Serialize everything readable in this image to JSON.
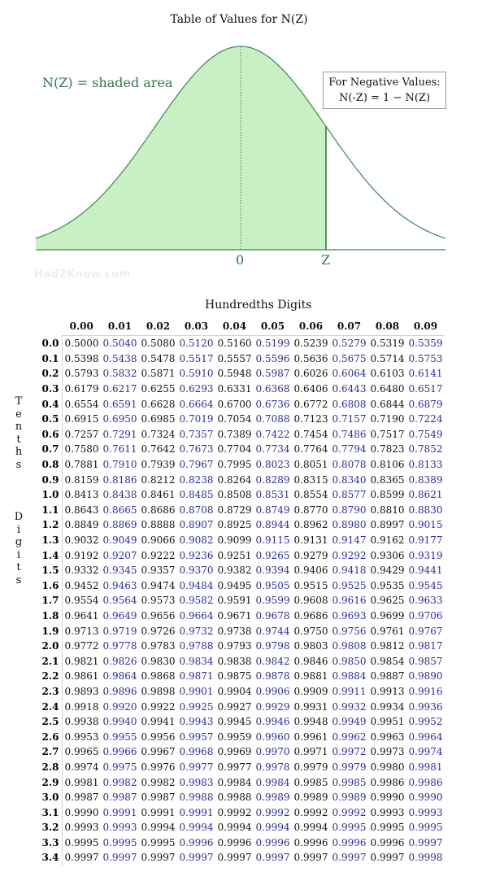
{
  "title": "Table of Values for N(Z)",
  "shaded_label": "N(Z) = shaded area",
  "negative_box": {
    "line1": "For Negative Values:",
    "line2": "N(-Z) = 1 − N(Z)"
  },
  "axis": {
    "zero": "0",
    "z": "Z"
  },
  "watermark": "Had2Know.com",
  "hundredths_label": "Hundredths Digits",
  "tenths_label": "Tenths",
  "digits_label": "Digits",
  "column_headers": [
    "0.00",
    "0.01",
    "0.02",
    "0.03",
    "0.04",
    "0.05",
    "0.06",
    "0.07",
    "0.08",
    "0.09"
  ],
  "rows": [
    {
      "z": "0.0",
      "v": [
        "0.5000",
        "0.5040",
        "0.5080",
        "0.5120",
        "0.5160",
        "0.5199",
        "0.5239",
        "0.5279",
        "0.5319",
        "0.5359"
      ]
    },
    {
      "z": "0.1",
      "v": [
        "0.5398",
        "0.5438",
        "0.5478",
        "0.5517",
        "0.5557",
        "0.5596",
        "0.5636",
        "0.5675",
        "0.5714",
        "0.5753"
      ]
    },
    {
      "z": "0.2",
      "v": [
        "0.5793",
        "0.5832",
        "0.5871",
        "0.5910",
        "0.5948",
        "0.5987",
        "0.6026",
        "0.6064",
        "0.6103",
        "0.6141"
      ]
    },
    {
      "z": "0.3",
      "v": [
        "0.6179",
        "0.6217",
        "0.6255",
        "0.6293",
        "0.6331",
        "0.6368",
        "0.6406",
        "0.6443",
        "0.6480",
        "0.6517"
      ]
    },
    {
      "z": "0.4",
      "v": [
        "0.6554",
        "0.6591",
        "0.6628",
        "0.6664",
        "0.6700",
        "0.6736",
        "0.6772",
        "0.6808",
        "0.6844",
        "0.6879"
      ]
    },
    {
      "z": "0.5",
      "v": [
        "0.6915",
        "0.6950",
        "0.6985",
        "0.7019",
        "0.7054",
        "0.7088",
        "0.7123",
        "0.7157",
        "0.7190",
        "0.7224"
      ]
    },
    {
      "z": "0.6",
      "v": [
        "0.7257",
        "0.7291",
        "0.7324",
        "0.7357",
        "0.7389",
        "0.7422",
        "0.7454",
        "0.7486",
        "0.7517",
        "0.7549"
      ]
    },
    {
      "z": "0.7",
      "v": [
        "0.7580",
        "0.7611",
        "0.7642",
        "0.7673",
        "0.7704",
        "0.7734",
        "0.7764",
        "0.7794",
        "0.7823",
        "0.7852"
      ]
    },
    {
      "z": "0.8",
      "v": [
        "0.7881",
        "0.7910",
        "0.7939",
        "0.7967",
        "0.7995",
        "0.8023",
        "0.8051",
        "0.8078",
        "0.8106",
        "0.8133"
      ]
    },
    {
      "z": "0.9",
      "v": [
        "0.8159",
        "0.8186",
        "0.8212",
        "0.8238",
        "0.8264",
        "0.8289",
        "0.8315",
        "0.8340",
        "0.8365",
        "0.8389"
      ]
    },
    {
      "z": "1.0",
      "v": [
        "0.8413",
        "0.8438",
        "0.8461",
        "0.8485",
        "0.8508",
        "0.8531",
        "0.8554",
        "0.8577",
        "0.8599",
        "0.8621"
      ]
    },
    {
      "z": "1.1",
      "v": [
        "0.8643",
        "0.8665",
        "0.8686",
        "0.8708",
        "0.8729",
        "0.8749",
        "0.8770",
        "0.8790",
        "0.8810",
        "0.8830"
      ]
    },
    {
      "z": "1.2",
      "v": [
        "0.8849",
        "0.8869",
        "0.8888",
        "0.8907",
        "0.8925",
        "0.8944",
        "0.8962",
        "0.8980",
        "0.8997",
        "0.9015"
      ]
    },
    {
      "z": "1.3",
      "v": [
        "0.9032",
        "0.9049",
        "0.9066",
        "0.9082",
        "0.9099",
        "0.9115",
        "0.9131",
        "0.9147",
        "0.9162",
        "0.9177"
      ]
    },
    {
      "z": "1.4",
      "v": [
        "0.9192",
        "0.9207",
        "0.9222",
        "0.9236",
        "0.9251",
        "0.9265",
        "0.9279",
        "0.9292",
        "0.9306",
        "0.9319"
      ]
    },
    {
      "z": "1.5",
      "v": [
        "0.9332",
        "0.9345",
        "0.9357",
        "0.9370",
        "0.9382",
        "0.9394",
        "0.9406",
        "0.9418",
        "0.9429",
        "0.9441"
      ]
    },
    {
      "z": "1.6",
      "v": [
        "0.9452",
        "0.9463",
        "0.9474",
        "0.9484",
        "0.9495",
        "0.9505",
        "0.9515",
        "0.9525",
        "0.9535",
        "0.9545"
      ]
    },
    {
      "z": "1.7",
      "v": [
        "0.9554",
        "0.9564",
        "0.9573",
        "0.9582",
        "0.9591",
        "0.9599",
        "0.9608",
        "0.9616",
        "0.9625",
        "0.9633"
      ]
    },
    {
      "z": "1.8",
      "v": [
        "0.9641",
        "0.9649",
        "0.9656",
        "0.9664",
        "0.9671",
        "0.9678",
        "0.9686",
        "0.9693",
        "0.9699",
        "0.9706"
      ]
    },
    {
      "z": "1.9",
      "v": [
        "0.9713",
        "0.9719",
        "0.9726",
        "0.9732",
        "0.9738",
        "0.9744",
        "0.9750",
        "0.9756",
        "0.9761",
        "0.9767"
      ]
    },
    {
      "z": "2.0",
      "v": [
        "0.9772",
        "0.9778",
        "0.9783",
        "0.9788",
        "0.9793",
        "0.9798",
        "0.9803",
        "0.9808",
        "0.9812",
        "0.9817"
      ]
    },
    {
      "z": "2.1",
      "v": [
        "0.9821",
        "0.9826",
        "0.9830",
        "0.9834",
        "0.9838",
        "0.9842",
        "0.9846",
        "0.9850",
        "0.9854",
        "0.9857"
      ]
    },
    {
      "z": "2.2",
      "v": [
        "0.9861",
        "0.9864",
        "0.9868",
        "0.9871",
        "0.9875",
        "0.9878",
        "0.9881",
        "0.9884",
        "0.9887",
        "0.9890"
      ]
    },
    {
      "z": "2.3",
      "v": [
        "0.9893",
        "0.9896",
        "0.9898",
        "0.9901",
        "0.9904",
        "0.9906",
        "0.9909",
        "0.9911",
        "0.9913",
        "0.9916"
      ]
    },
    {
      "z": "2.4",
      "v": [
        "0.9918",
        "0.9920",
        "0.9922",
        "0.9925",
        "0.9927",
        "0.9929",
        "0.9931",
        "0.9932",
        "0.9934",
        "0.9936"
      ]
    },
    {
      "z": "2.5",
      "v": [
        "0.9938",
        "0.9940",
        "0.9941",
        "0.9943",
        "0.9945",
        "0.9946",
        "0.9948",
        "0.9949",
        "0.9951",
        "0.9952"
      ]
    },
    {
      "z": "2.6",
      "v": [
        "0.9953",
        "0.9955",
        "0.9956",
        "0.9957",
        "0.9959",
        "0.9960",
        "0.9961",
        "0.9962",
        "0.9963",
        "0.9964"
      ]
    },
    {
      "z": "2.7",
      "v": [
        "0.9965",
        "0.9966",
        "0.9967",
        "0.9968",
        "0.9969",
        "0.9970",
        "0.9971",
        "0.9972",
        "0.9973",
        "0.9974"
      ]
    },
    {
      "z": "2.8",
      "v": [
        "0.9974",
        "0.9975",
        "0.9976",
        "0.9977",
        "0.9977",
        "0.9978",
        "0.9979",
        "0.9979",
        "0.9980",
        "0.9981"
      ]
    },
    {
      "z": "2.9",
      "v": [
        "0.9981",
        "0.9982",
        "0.9982",
        "0.9983",
        "0.9984",
        "0.9984",
        "0.9985",
        "0.9985",
        "0.9986",
        "0.9986"
      ]
    },
    {
      "z": "3.0",
      "v": [
        "0.9987",
        "0.9987",
        "0.9987",
        "0.9988",
        "0.9988",
        "0.9989",
        "0.9989",
        "0.9989",
        "0.9990",
        "0.9990"
      ]
    },
    {
      "z": "3.1",
      "v": [
        "0.9990",
        "0.9991",
        "0.9991",
        "0.9991",
        "0.9992",
        "0.9992",
        "0.9992",
        "0.9992",
        "0.9993",
        "0.9993"
      ]
    },
    {
      "z": "3.2",
      "v": [
        "0.9993",
        "0.9993",
        "0.9994",
        "0.9994",
        "0.9994",
        "0.9994",
        "0.9994",
        "0.9995",
        "0.9995",
        "0.9995"
      ]
    },
    {
      "z": "3.3",
      "v": [
        "0.9995",
        "0.9995",
        "0.9995",
        "0.9996",
        "0.9996",
        "0.9996",
        "0.9996",
        "0.9996",
        "0.9996",
        "0.9997"
      ]
    },
    {
      "z": "3.4",
      "v": [
        "0.9997",
        "0.9997",
        "0.9997",
        "0.9997",
        "0.9997",
        "0.9997",
        "0.9997",
        "0.9997",
        "0.9997",
        "0.9998"
      ]
    }
  ],
  "colors": {
    "curve_fill": "#c8f0c4",
    "curve_line": "#3a8a4a",
    "label_green": "#2f7a4a",
    "blue_text": "#2a2ab8"
  }
}
